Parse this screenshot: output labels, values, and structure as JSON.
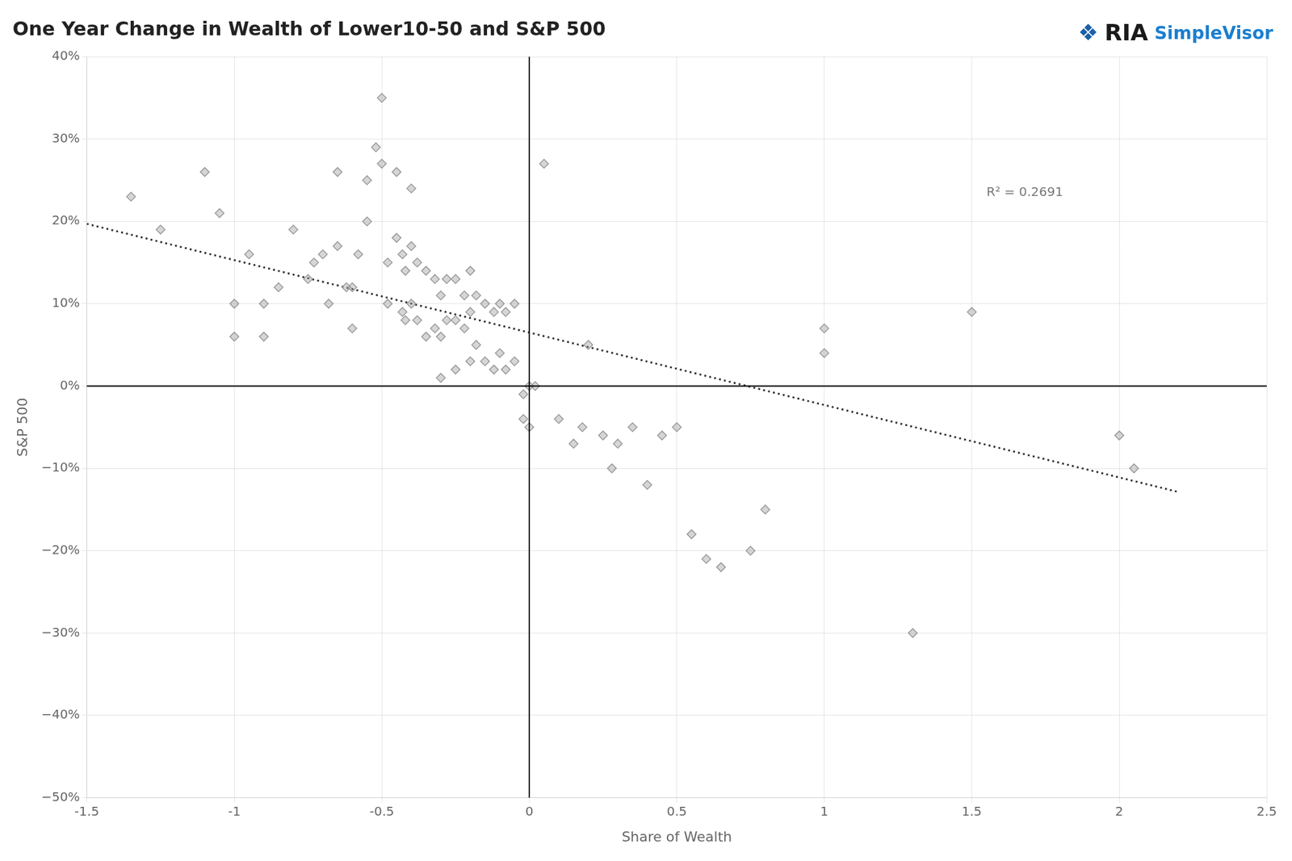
{
  "chart_data": {
    "type": "scatter",
    "title": "One Year Change in Wealth of Lower10-50 and S&P 500",
    "xlabel": "Share of Wealth",
    "ylabel": "S&P 500",
    "xlim": [
      -1.5,
      2.5
    ],
    "ylim": [
      -0.5,
      0.4
    ],
    "xticks": [
      -1.5,
      -1,
      -0.5,
      0,
      0.5,
      1,
      1.5,
      2,
      2.5
    ],
    "yticks": [
      {
        "value": -0.5,
        "label": "−50%"
      },
      {
        "value": -0.4,
        "label": "−40%"
      },
      {
        "value": -0.3,
        "label": "−30%"
      },
      {
        "value": -0.2,
        "label": "−20%"
      },
      {
        "value": -0.1,
        "label": "−10%"
      },
      {
        "value": 0,
        "label": "0%"
      },
      {
        "value": 0.1,
        "label": "10%"
      },
      {
        "value": 0.2,
        "label": "20%"
      },
      {
        "value": 0.3,
        "label": "30%"
      },
      {
        "value": 0.4,
        "label": "40%"
      }
    ],
    "grid": true,
    "series": [
      {
        "type": "scatter",
        "marker": "diamond",
        "color": "#999999",
        "x": [
          -1.35,
          -1.25,
          -1.1,
          -1.05,
          -1.0,
          -1.0,
          -0.95,
          -0.9,
          -0.9,
          -0.85,
          -0.8,
          -0.75,
          -0.73,
          -0.7,
          -0.68,
          -0.65,
          -0.65,
          -0.62,
          -0.6,
          -0.6,
          -0.58,
          -0.55,
          -0.55,
          -0.52,
          -0.5,
          -0.5,
          -0.48,
          -0.48,
          -0.45,
          -0.45,
          -0.43,
          -0.43,
          -0.42,
          -0.42,
          -0.4,
          -0.4,
          -0.4,
          -0.38,
          -0.38,
          -0.35,
          -0.35,
          -0.32,
          -0.32,
          -0.3,
          -0.3,
          -0.3,
          -0.28,
          -0.28,
          -0.25,
          -0.25,
          -0.25,
          -0.22,
          -0.22,
          -0.2,
          -0.2,
          -0.2,
          -0.18,
          -0.18,
          -0.15,
          -0.15,
          -0.12,
          -0.12,
          -0.1,
          -0.1,
          -0.08,
          -0.08,
          -0.05,
          -0.05,
          -0.02,
          -0.02,
          0.0,
          0.0,
          0.02,
          0.05,
          0.1,
          0.15,
          0.18,
          0.2,
          0.25,
          0.28,
          0.3,
          0.35,
          0.4,
          0.45,
          0.5,
          0.55,
          0.6,
          0.65,
          0.75,
          0.8,
          1.0,
          1.0,
          1.3,
          1.5,
          2.0,
          2.05
        ],
        "values": [
          0.23,
          0.19,
          0.26,
          0.21,
          0.1,
          0.06,
          0.16,
          0.1,
          0.06,
          0.12,
          0.19,
          0.13,
          0.15,
          0.16,
          0.1,
          0.26,
          0.17,
          0.12,
          0.12,
          0.07,
          0.16,
          0.25,
          0.2,
          0.29,
          0.35,
          0.27,
          0.15,
          0.1,
          0.26,
          0.18,
          0.16,
          0.09,
          0.14,
          0.08,
          0.24,
          0.17,
          0.1,
          0.15,
          0.08,
          0.14,
          0.06,
          0.13,
          0.07,
          0.11,
          0.06,
          0.01,
          0.13,
          0.08,
          0.13,
          0.08,
          0.02,
          0.11,
          0.07,
          0.14,
          0.09,
          0.03,
          0.11,
          0.05,
          0.1,
          0.03,
          0.09,
          0.02,
          0.1,
          0.04,
          0.09,
          0.02,
          0.1,
          0.03,
          -0.01,
          -0.04,
          0.0,
          -0.05,
          0.0,
          0.27,
          -0.04,
          -0.07,
          -0.05,
          0.05,
          -0.06,
          -0.1,
          -0.07,
          -0.05,
          -0.12,
          -0.06,
          -0.05,
          -0.18,
          -0.21,
          -0.22,
          -0.2,
          -0.15,
          0.07,
          0.04,
          -0.3,
          0.09,
          -0.06,
          -0.1
        ]
      },
      {
        "type": "line",
        "line_style": "dotted",
        "color": "#333333",
        "x": [
          -1.5,
          2.2
        ],
        "values": [
          0.197,
          -0.1286
        ]
      }
    ],
    "reference_lines": [
      {
        "axis": "y",
        "value": 0,
        "color": "#000000"
      },
      {
        "axis": "x",
        "value": 0,
        "color": "#000000"
      }
    ],
    "annotations": [
      {
        "text": "R² = 0.2691",
        "x": 1.55,
        "y": 0.235,
        "color": "#777777"
      }
    ],
    "logo": [
      {
        "text": "❖",
        "color": "#1a5fa8"
      },
      {
        "text": "RIA",
        "color": "#1a1a1a"
      },
      {
        "text": "SimpleVisor",
        "color": "#1a7fcf"
      }
    ]
  }
}
